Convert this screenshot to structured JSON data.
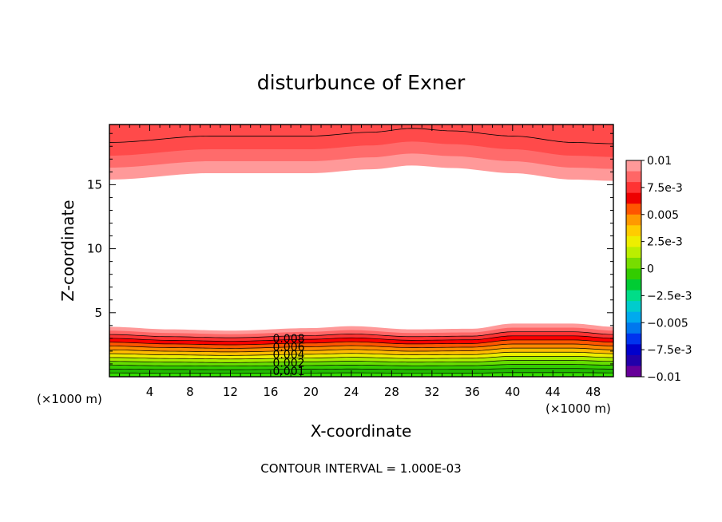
{
  "chart_data": {
    "type": "heatmap",
    "title": "disturbunce of Exner",
    "xlabel": "X-coordinate",
    "ylabel": "Z-coordinate",
    "x_unit_left": "(×1000 m)",
    "x_unit_right": "(×1000 m)",
    "xlim": [
      0,
      50
    ],
    "ylim": [
      0,
      19.7
    ],
    "x_ticks": [
      4,
      8,
      12,
      16,
      20,
      24,
      28,
      32,
      36,
      40,
      44,
      48
    ],
    "y_ticks": [
      5,
      10,
      15
    ],
    "contour_interval_text": "CONTOUR INTERVAL = 1.000E-03",
    "contour_labels": [
      "0.008",
      "0.006",
      "0.004",
      "0.002",
      "0.001"
    ],
    "colorbar": {
      "labels": [
        "0.01",
        "7.5e-3",
        "0.005",
        "2.5e-3",
        "0",
        "−2.5e-3",
        "−0.005",
        "−7.5e-3",
        "−0.01"
      ],
      "levels": [
        0.01,
        0.0075,
        0.005,
        0.0025,
        0,
        -0.0025,
        -0.005,
        -0.0075,
        -0.01
      ],
      "colors": [
        "#ff9999",
        "#ff6666",
        "#ff3333",
        "#ee0000",
        "#ff5500",
        "#ff9900",
        "#ffcc00",
        "#eeee00",
        "#bbee00",
        "#77dd00",
        "#33cc00",
        "#00cc33",
        "#00dd88",
        "#00cccc",
        "#00aaee",
        "#0077ee",
        "#0033ee",
        "#0000cc",
        "#2200aa",
        "#660099"
      ]
    },
    "bands": [
      {
        "name": "upper",
        "z_at_x": [
          [
            0,
            15.4
          ],
          [
            10,
            15.9
          ],
          [
            20,
            15.9
          ],
          [
            26,
            16.2
          ],
          [
            30,
            16.5
          ],
          [
            34,
            16.3
          ],
          [
            40,
            15.9
          ],
          [
            46,
            15.4
          ],
          [
            50,
            15.3
          ]
        ],
        "colors": [
          "#ff9999",
          "#ff6b6b",
          "#ff4a4a"
        ]
      },
      {
        "name": "lower",
        "z_at_x": [
          [
            0,
            3.9
          ],
          [
            6,
            3.7
          ],
          [
            12,
            3.6
          ],
          [
            20,
            3.8
          ],
          [
            24,
            3.95
          ],
          [
            30,
            3.7
          ],
          [
            36,
            3.75
          ],
          [
            40,
            4.15
          ],
          [
            46,
            4.15
          ],
          [
            50,
            3.9
          ]
        ],
        "colors": [
          "#ff9999",
          "#ff6666",
          "#ff3333",
          "#ff0000",
          "#ff5500",
          "#ff8800",
          "#ffbb00",
          "#eeee00",
          "#aaee00",
          "#66dd00",
          "#33cc00",
          "#22bb00",
          "#33dd00"
        ]
      }
    ]
  }
}
